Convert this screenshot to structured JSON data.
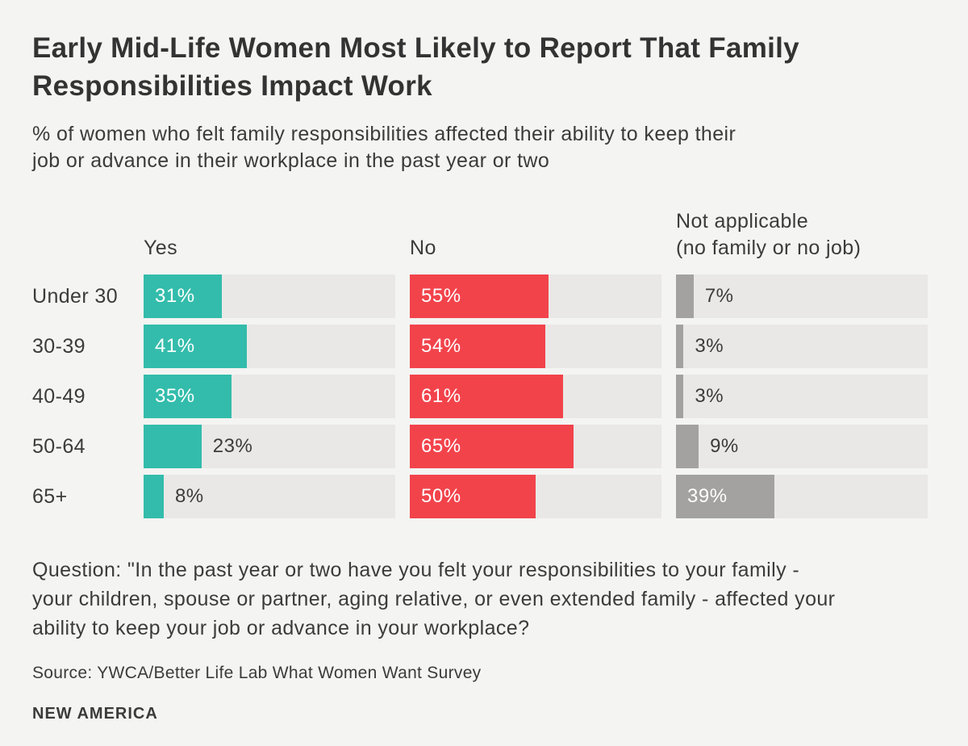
{
  "header": {
    "title": "Early Mid-Life Women Most Likely to Report That Family Responsibilities Impact Work",
    "title_lines": [
      "Early Mid-Life Women Most Likely to Report That Family",
      "Responsibilities Impact Work"
    ],
    "subtitle": "% of women who felt family responsibilities affected their ability to keep their job or advance in their workplace in the past year or two",
    "subtitle_lines": [
      "% of women who felt family responsibilities affected their ability to keep their",
      "job or advance in their workplace in the past year or two"
    ]
  },
  "chart_data": {
    "type": "bar",
    "orientation": "horizontal",
    "title": "Early Mid-Life Women Most Likely to Report That Family Responsibilities Impact Work",
    "subtitle": "% of women who felt family responsibilities affected their ability to keep their job or advance in their workplace in the past year or two",
    "categories": [
      "Under 30",
      "30-39",
      "40-49",
      "50-64",
      "65+"
    ],
    "series": [
      {
        "name": "Yes",
        "color": "#33bcab",
        "values": [
          31,
          41,
          35,
          23,
          8
        ]
      },
      {
        "name": "No",
        "color": "#f2434b",
        "values": [
          55,
          54,
          61,
          65,
          50
        ]
      },
      {
        "name": "Not applicable (no family or no job)",
        "color": "#a3a2a0",
        "values": [
          7,
          3,
          3,
          9,
          39
        ]
      }
    ],
    "column_headers": [
      {
        "lines": [
          "Yes"
        ]
      },
      {
        "lines": [
          "No"
        ]
      },
      {
        "lines": [
          "Not applicable",
          "(no family or no job)"
        ]
      }
    ],
    "value_suffix": "%",
    "xlim": [
      0,
      100
    ],
    "grid": false,
    "legend_position": "column-headers-top",
    "track_color": "#e9e8e6",
    "inside_label_threshold": 30
  },
  "footer": {
    "question": "Question: \"In the past year or two have you felt your responsibilities to your family - your children, spouse or partner, aging relative, or even extended family - affected your ability to keep your job or advance in your workplace?",
    "question_lines": [
      "Question: \"In the past year or two have you felt your responsibilities to your family -",
      "your children, spouse or partner, aging relative, or even extended family - affected your",
      "ability to keep your job or advance in your workplace?"
    ],
    "source": "Source: YWCA/Better Life Lab What Women Want Survey",
    "brand": "NEW AMERICA"
  },
  "colors": {
    "background": "#f4f4f2",
    "track": "#e9e8e6",
    "yes_bar": "#33bcab",
    "no_bar": "#f2434b",
    "na_bar": "#a3a2a0",
    "text": "#3b3b3b"
  }
}
